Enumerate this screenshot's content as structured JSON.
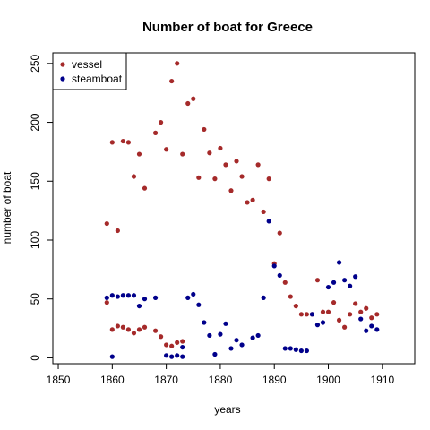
{
  "chart_data": {
    "type": "scatter",
    "title": "Number of boat for Greece",
    "xlabel": "years",
    "ylabel": "number of boat",
    "xlim": [
      1849,
      1916
    ],
    "ylim": [
      -5,
      259
    ],
    "x_ticks": [
      1850,
      1860,
      1870,
      1880,
      1890,
      1900,
      1910
    ],
    "y_ticks": [
      0,
      50,
      100,
      150,
      200,
      250
    ],
    "grid": false,
    "legend_position": "top-left",
    "series": [
      {
        "name": "vessel",
        "color": "#a52a2a",
        "points": [
          [
            1859,
            114
          ],
          [
            1859,
            47
          ],
          [
            1860,
            183
          ],
          [
            1860,
            24
          ],
          [
            1861,
            108
          ],
          [
            1861,
            27
          ],
          [
            1862,
            184
          ],
          [
            1862,
            26
          ],
          [
            1863,
            183
          ],
          [
            1863,
            24
          ],
          [
            1864,
            154
          ],
          [
            1864,
            21
          ],
          [
            1865,
            173
          ],
          [
            1865,
            24
          ],
          [
            1866,
            144
          ],
          [
            1866,
            26
          ],
          [
            1868,
            191
          ],
          [
            1868,
            23
          ],
          [
            1869,
            200
          ],
          [
            1869,
            18
          ],
          [
            1870,
            177
          ],
          [
            1870,
            11
          ],
          [
            1871,
            235
          ],
          [
            1871,
            10
          ],
          [
            1872,
            250
          ],
          [
            1872,
            13
          ],
          [
            1873,
            173
          ],
          [
            1873,
            14
          ],
          [
            1874,
            216
          ],
          [
            1875,
            220
          ],
          [
            1876,
            153
          ],
          [
            1877,
            194
          ],
          [
            1878,
            174
          ],
          [
            1879,
            152
          ],
          [
            1880,
            178
          ],
          [
            1881,
            164
          ],
          [
            1882,
            142
          ],
          [
            1883,
            167
          ],
          [
            1884,
            154
          ],
          [
            1885,
            132
          ],
          [
            1886,
            134
          ],
          [
            1887,
            164
          ],
          [
            1888,
            124
          ],
          [
            1889,
            152
          ],
          [
            1890,
            80
          ],
          [
            1891,
            106
          ],
          [
            1892,
            64
          ],
          [
            1893,
            52
          ],
          [
            1894,
            44
          ],
          [
            1895,
            37
          ],
          [
            1896,
            37
          ],
          [
            1897,
            37
          ],
          [
            1898,
            66
          ],
          [
            1899,
            39
          ],
          [
            1900,
            39
          ],
          [
            1901,
            47
          ],
          [
            1902,
            32
          ],
          [
            1903,
            26
          ],
          [
            1904,
            37
          ],
          [
            1905,
            46
          ],
          [
            1906,
            39
          ],
          [
            1907,
            42
          ],
          [
            1908,
            34
          ],
          [
            1909,
            37
          ]
        ]
      },
      {
        "name": "steamboat",
        "color": "#00008b",
        "points": [
          [
            1859,
            51
          ],
          [
            1860,
            53
          ],
          [
            1860,
            1
          ],
          [
            1861,
            52
          ],
          [
            1862,
            53
          ],
          [
            1863,
            53
          ],
          [
            1864,
            53
          ],
          [
            1865,
            44
          ],
          [
            1866,
            50
          ],
          [
            1868,
            51
          ],
          [
            1870,
            2
          ],
          [
            1871,
            1
          ],
          [
            1872,
            2
          ],
          [
            1873,
            9
          ],
          [
            1873,
            1
          ],
          [
            1874,
            51
          ],
          [
            1875,
            54
          ],
          [
            1876,
            45
          ],
          [
            1877,
            30
          ],
          [
            1878,
            19
          ],
          [
            1879,
            3
          ],
          [
            1880,
            20
          ],
          [
            1881,
            29
          ],
          [
            1882,
            8
          ],
          [
            1883,
            15
          ],
          [
            1884,
            11
          ],
          [
            1886,
            17
          ],
          [
            1887,
            19
          ],
          [
            1888,
            51
          ],
          [
            1889,
            116
          ],
          [
            1890,
            78
          ],
          [
            1891,
            70
          ],
          [
            1892,
            8
          ],
          [
            1893,
            8
          ],
          [
            1894,
            7
          ],
          [
            1895,
            6
          ],
          [
            1896,
            6
          ],
          [
            1897,
            37
          ],
          [
            1898,
            28
          ],
          [
            1899,
            30
          ],
          [
            1900,
            60
          ],
          [
            1901,
            64
          ],
          [
            1902,
            81
          ],
          [
            1903,
            66
          ],
          [
            1904,
            61
          ],
          [
            1905,
            69
          ],
          [
            1906,
            33
          ],
          [
            1907,
            23
          ],
          [
            1908,
            27
          ],
          [
            1909,
            24
          ]
        ]
      }
    ]
  }
}
